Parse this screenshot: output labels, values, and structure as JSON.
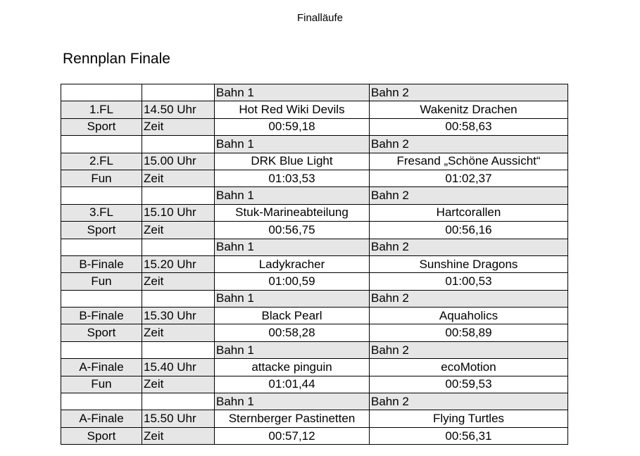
{
  "header": {
    "text": "Finalläufe"
  },
  "title": "Rennplan Finale",
  "lane1_label": "Bahn 1",
  "lane2_label": "Bahn 2",
  "time_label": "Zeit",
  "races": [
    {
      "race": "1.FL",
      "start": "14.50 Uhr",
      "category": "Sport",
      "team1": "Hot Red Wiki Devils",
      "team2": "Wakenitz Drachen",
      "time1": "00:59,18",
      "time2": "00:58,63"
    },
    {
      "race": "2.FL",
      "start": "15.00 Uhr",
      "category": "Fun",
      "team1": "DRK Blue Light",
      "team2": "Fresand „Schöne Aussicht“",
      "time1": "01:03,53",
      "time2": "01:02,37"
    },
    {
      "race": "3.FL",
      "start": "15.10 Uhr",
      "category": "Sport",
      "team1": "Stuk-Marineabteilung",
      "team2": "Hartcorallen",
      "time1": "00:56,75",
      "time2": "00:56,16"
    },
    {
      "race": "B-Finale",
      "start": "15.20 Uhr",
      "category": "Fun",
      "team1": "Ladykracher",
      "team2": "Sunshine Dragons",
      "time1": "01:00,59",
      "time2": "01:00,53"
    },
    {
      "race": "B-Finale",
      "start": "15.30 Uhr",
      "category": "Sport",
      "team1": "Black Pearl",
      "team2": "Aquaholics",
      "time1": "00:58,28",
      "time2": "00:58,89"
    },
    {
      "race": "A-Finale",
      "start": "15.40 Uhr",
      "category": "Fun",
      "team1": "attacke pinguin",
      "team2": "ecoMotion",
      "time1": "01:01,44",
      "time2": "00:59,53"
    },
    {
      "race": "A-Finale",
      "start": "15.50 Uhr",
      "category": "Sport",
      "team1": "Sternberger Pastinetten",
      "team2": "Flying Turtles",
      "time1": "00:57,12",
      "time2": "00:56,31"
    }
  ]
}
